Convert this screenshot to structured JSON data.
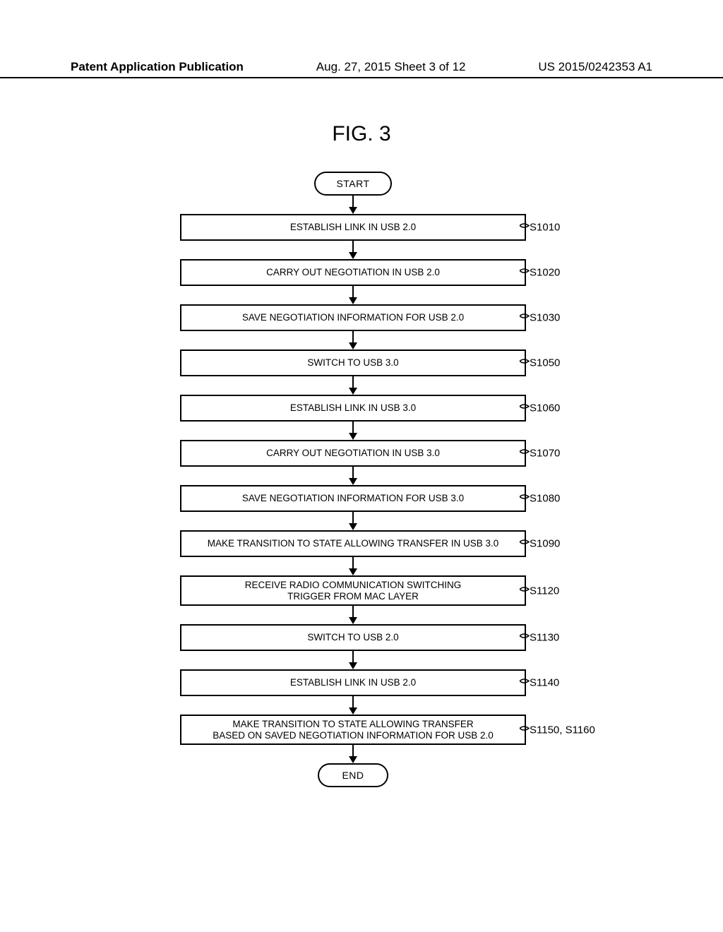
{
  "header": {
    "left": "Patent Application Publication",
    "center": "Aug. 27, 2015  Sheet 3 of 12",
    "right": "US 2015/0242353 A1"
  },
  "figure_title": "FIG. 3",
  "flowchart": {
    "start": "START",
    "end": "END",
    "steps": [
      {
        "text": "ESTABLISH LINK IN USB 2.0",
        "label": "S1010"
      },
      {
        "text": "CARRY OUT NEGOTIATION IN USB 2.0",
        "label": "S1020"
      },
      {
        "text": "SAVE NEGOTIATION INFORMATION FOR USB 2.0",
        "label": "S1030"
      },
      {
        "text": "SWITCH TO USB 3.0",
        "label": "S1050"
      },
      {
        "text": "ESTABLISH LINK IN USB 3.0",
        "label": "S1060"
      },
      {
        "text": "CARRY OUT NEGOTIATION IN USB 3.0",
        "label": "S1070"
      },
      {
        "text": "SAVE NEGOTIATION INFORMATION FOR USB 3.0",
        "label": "S1080"
      },
      {
        "text": "MAKE TRANSITION TO STATE ALLOWING TRANSFER IN USB 3.0",
        "label": "S1090"
      },
      {
        "text": "RECEIVE RADIO COMMUNICATION SWITCHING\nTRIGGER FROM MAC LAYER",
        "label": "S1120"
      },
      {
        "text": "SWITCH TO USB 2.0",
        "label": "S1130"
      },
      {
        "text": "ESTABLISH LINK IN USB 2.0",
        "label": "S1140"
      },
      {
        "text": "MAKE TRANSITION TO STATE ALLOWING TRANSFER\nBASED ON SAVED NEGOTIATION INFORMATION FOR USB 2.0",
        "label": "S1150, S1160"
      }
    ]
  },
  "colors": {
    "stroke": "#000000",
    "bg": "#ffffff"
  }
}
